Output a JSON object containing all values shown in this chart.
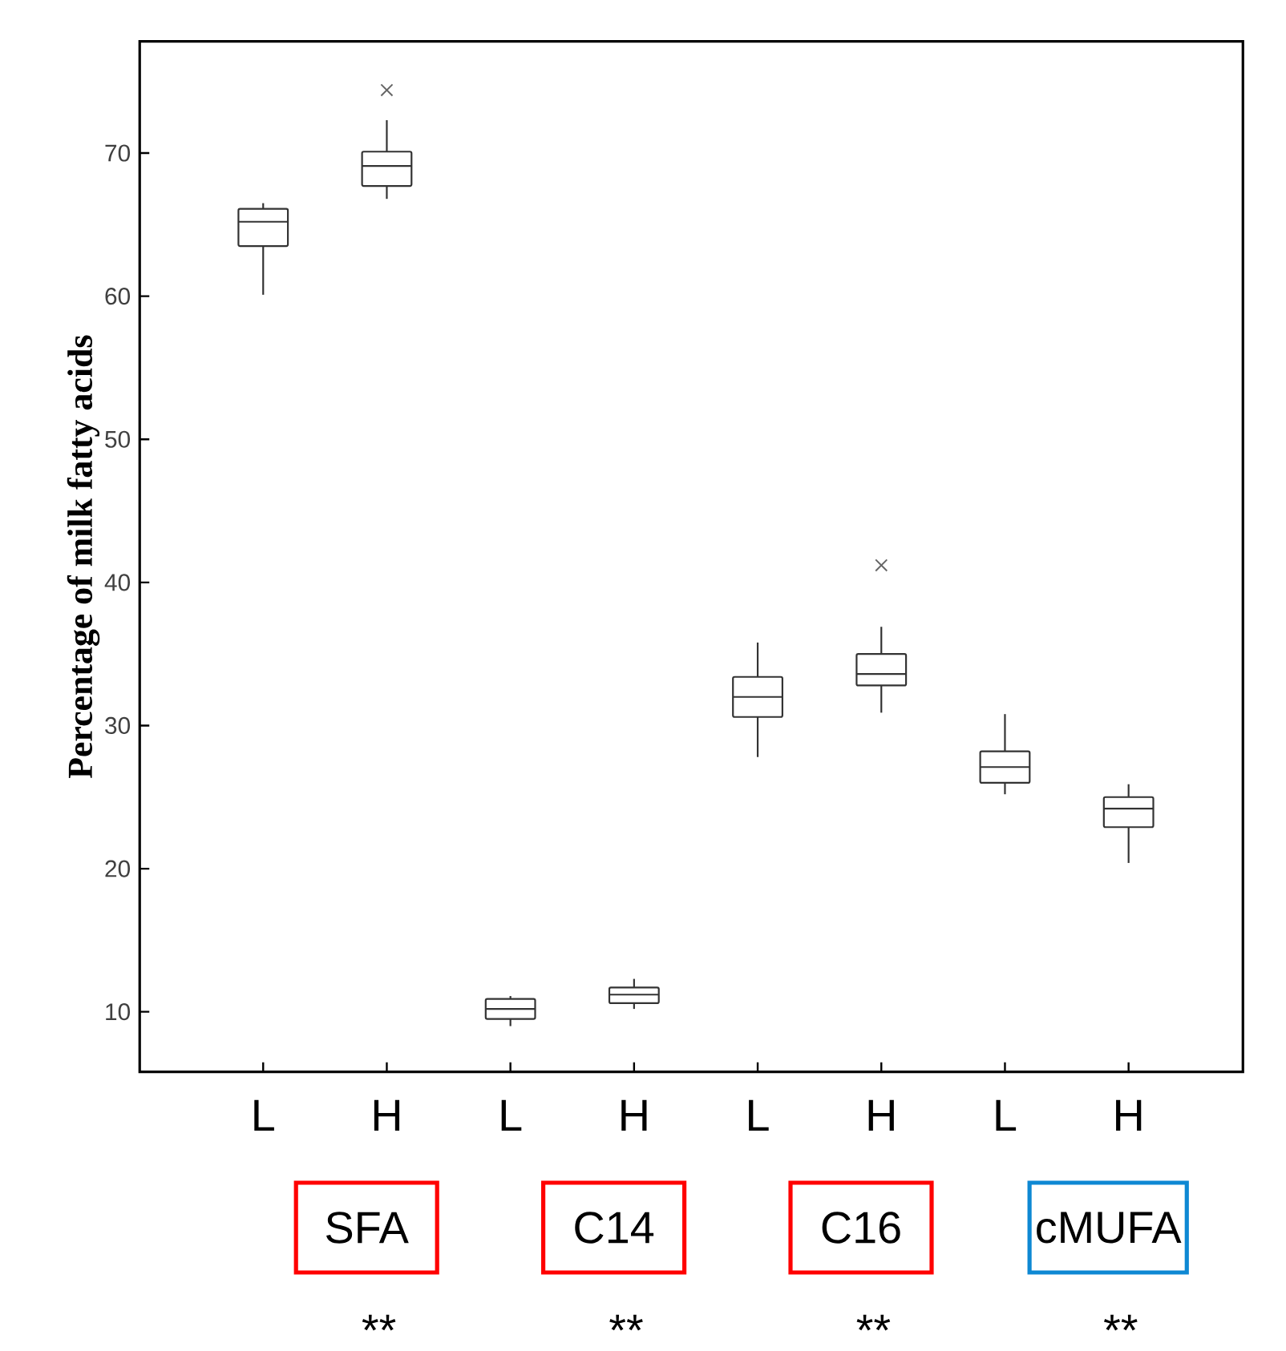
{
  "chart_data": {
    "type": "box",
    "ylabel": "Percentage of milk fatty acids",
    "categories": [
      "L",
      "H",
      "L",
      "H",
      "L",
      "H",
      "L",
      "H"
    ],
    "boxes": [
      {
        "low": 60.1,
        "q1": 63.5,
        "median": 65.2,
        "q3": 66.1,
        "high": 66.5
      },
      {
        "low": 66.8,
        "q1": 67.7,
        "median": 69.1,
        "q3": 70.1,
        "high": 72.3,
        "outliers": [
          74.4
        ]
      },
      {
        "low": 9.0,
        "q1": 9.5,
        "median": 10.2,
        "q3": 10.9,
        "high": 11.1
      },
      {
        "low": 10.2,
        "q1": 10.6,
        "median": 11.2,
        "q3": 11.7,
        "high": 12.3
      },
      {
        "low": 27.8,
        "q1": 30.6,
        "median": 32.0,
        "q3": 33.4,
        "high": 35.8
      },
      {
        "low": 30.9,
        "q1": 32.8,
        "median": 33.6,
        "q3": 35.0,
        "high": 36.9,
        "outliers": [
          41.2
        ]
      },
      {
        "low": 25.2,
        "q1": 26.0,
        "median": 27.1,
        "q3": 28.2,
        "high": 30.8
      },
      {
        "low": 20.4,
        "q1": 22.9,
        "median": 24.2,
        "q3": 25.0,
        "high": 25.9
      }
    ],
    "marker": "cross",
    "ylim": [
      5.8,
      77.8
    ],
    "yticks": [
      10,
      20,
      30,
      40,
      50,
      60,
      70
    ],
    "annotations": [
      "SFA",
      "C14",
      "C16",
      "cMUFA",
      "**",
      "**",
      "**",
      "**"
    ]
  }
}
